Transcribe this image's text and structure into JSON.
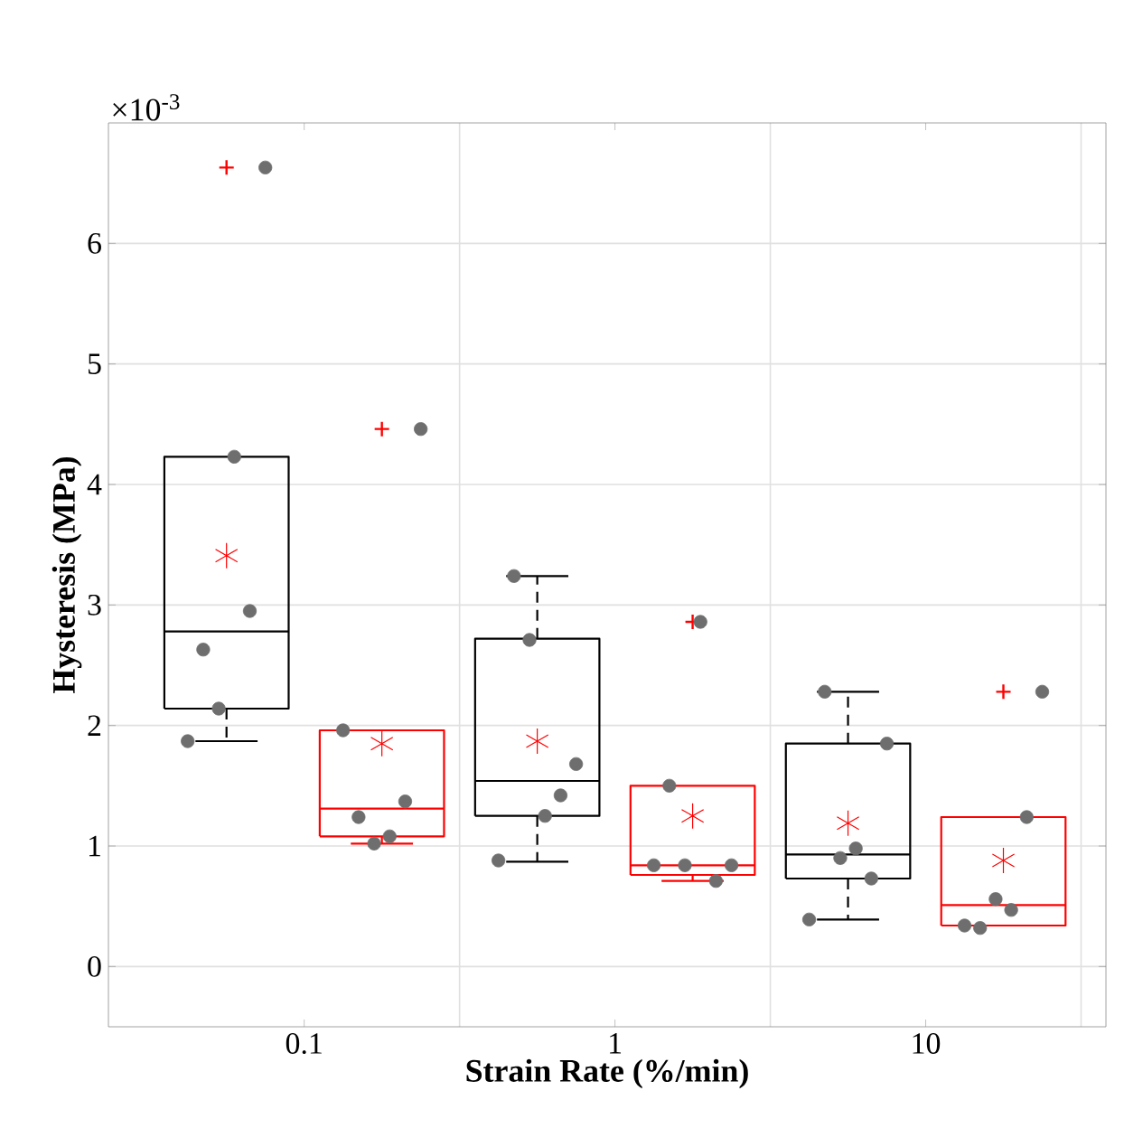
{
  "chart_data": {
    "type": "box",
    "xlabel": "Strain Rate (%/min)",
    "ylabel": "Hysteresis (MPa)",
    "annotations": [
      "×10$^{-3}$"
    ],
    "categories": [
      "0.1",
      "1",
      "10"
    ],
    "ylim": [
      -0.5,
      7
    ],
    "yticks": [
      0,
      1,
      2,
      3,
      4,
      5,
      6
    ],
    "grid": true,
    "series": [
      {
        "type": "box",
        "color": "#000000",
        "line_style": "dashed",
        "boxes": [
          {
            "low": 1.87,
            "q1": 2.14,
            "median": 2.78,
            "q3": 4.23,
            "high": 4.23,
            "mean": 3.41,
            "outliers": [
              6.63
            ]
          },
          {
            "low": 0.87,
            "q1": 1.25,
            "median": 1.54,
            "q3": 2.72,
            "high": 3.24,
            "mean": 1.87
          },
          {
            "low": 0.39,
            "q1": 0.73,
            "median": 0.93,
            "q3": 1.85,
            "high": 2.28,
            "mean": 1.19
          }
        ]
      },
      {
        "type": "box",
        "color": "#ff0000",
        "line_style": "solid",
        "boxes": [
          {
            "low": 1.02,
            "q1": 1.08,
            "median": 1.31,
            "q3": 1.96,
            "high": 1.96,
            "mean": 1.85,
            "outliers": [
              4.46
            ]
          },
          {
            "low": 0.71,
            "q1": 0.76,
            "median": 0.84,
            "q3": 1.5,
            "high": 1.5,
            "mean": 1.25,
            "outliers": [
              2.86
            ]
          },
          {
            "low": 0.34,
            "q1": 0.34,
            "median": 0.51,
            "q3": 1.24,
            "high": 1.24,
            "mean": 0.88,
            "outliers": [
              2.28
            ]
          }
        ]
      },
      {
        "type": "scatter",
        "color": "#6e6e6e",
        "marker": "circle",
        "x": [
          "0.1",
          "0.1",
          "0.1",
          "0.1",
          "0.1",
          "0.1",
          "1",
          "1",
          "1",
          "1",
          "1",
          "1",
          "10",
          "10",
          "10",
          "10",
          "10",
          "10"
        ],
        "values": [
          1.87,
          2.63,
          2.14,
          4.23,
          2.95,
          6.63,
          0.88,
          3.24,
          2.71,
          1.25,
          1.42,
          1.68,
          0.39,
          2.28,
          0.9,
          0.98,
          0.73,
          1.85
        ]
      },
      {
        "type": "scatter",
        "color": "#6e6e6e",
        "marker": "circle",
        "x": [
          "0.1",
          "0.1",
          "0.1",
          "0.1",
          "0.1",
          "0.1",
          "1",
          "1",
          "1",
          "1",
          "1",
          "1",
          "10",
          "10",
          "10",
          "10",
          "10",
          "10"
        ],
        "values": [
          1.96,
          1.24,
          1.02,
          1.08,
          1.37,
          4.46,
          0.84,
          1.5,
          0.84,
          2.86,
          0.71,
          0.84,
          0.34,
          0.32,
          0.56,
          0.47,
          1.24,
          2.28
        ]
      }
    ]
  }
}
